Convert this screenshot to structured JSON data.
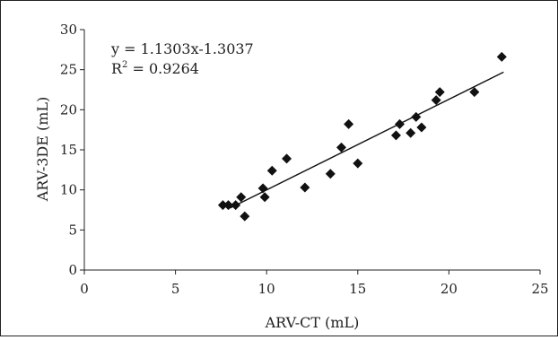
{
  "chart_data": {
    "type": "scatter",
    "xlabel": "ARV-CT (mL)",
    "ylabel": "ARV-3DE (mL)",
    "xlim": [
      0,
      25
    ],
    "ylim": [
      0,
      30
    ],
    "x_ticks": [
      "0",
      "5",
      "10",
      "15",
      "20",
      "25"
    ],
    "y_ticks": [
      "0",
      "5",
      "10",
      "15",
      "20",
      "25",
      "30"
    ],
    "grid": false,
    "legend": "none",
    "marker": "diamond",
    "marker_color": "#111111",
    "trendline": {
      "slope": 1.1303,
      "intercept": -1.3037,
      "x_range": [
        8.0,
        23.0
      ]
    },
    "annotations": {
      "equation": "y = 1.1303x-1.3037",
      "r2_prefix": "R",
      "r2_exponent": "2",
      "r2_value": " = 0.9264"
    },
    "series": [
      {
        "points": [
          {
            "x": 7.6,
            "y": 8.1
          },
          {
            "x": 7.9,
            "y": 8.1
          },
          {
            "x": 8.3,
            "y": 8.1
          },
          {
            "x": 8.6,
            "y": 9.1
          },
          {
            "x": 8.8,
            "y": 6.7
          },
          {
            "x": 9.8,
            "y": 10.2
          },
          {
            "x": 9.9,
            "y": 9.1
          },
          {
            "x": 10.3,
            "y": 12.4
          },
          {
            "x": 11.1,
            "y": 13.9
          },
          {
            "x": 12.1,
            "y": 10.3
          },
          {
            "x": 13.5,
            "y": 12.0
          },
          {
            "x": 14.1,
            "y": 15.3
          },
          {
            "x": 14.5,
            "y": 18.2
          },
          {
            "x": 15.0,
            "y": 13.3
          },
          {
            "x": 17.1,
            "y": 16.8
          },
          {
            "x": 17.3,
            "y": 18.2
          },
          {
            "x": 17.9,
            "y": 17.1
          },
          {
            "x": 18.2,
            "y": 19.1
          },
          {
            "x": 18.5,
            "y": 17.8
          },
          {
            "x": 19.3,
            "y": 21.2
          },
          {
            "x": 19.5,
            "y": 22.2
          },
          {
            "x": 21.4,
            "y": 22.2
          },
          {
            "x": 22.9,
            "y": 26.6
          }
        ]
      }
    ]
  }
}
